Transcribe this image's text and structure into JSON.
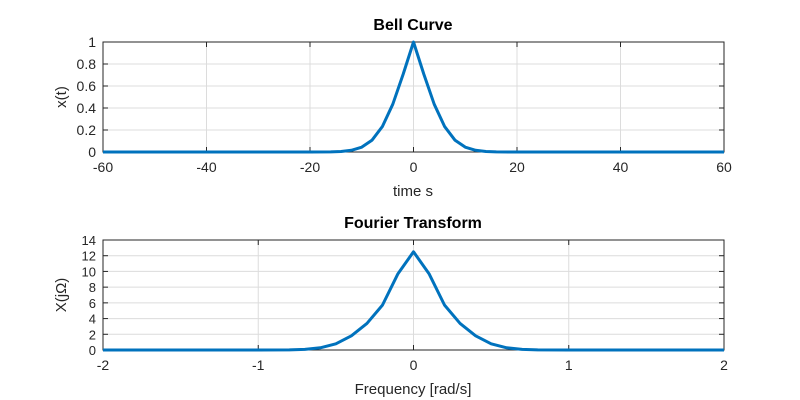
{
  "chart_data": [
    {
      "type": "line",
      "title": "Bell Curve",
      "xlabel": "time s",
      "ylabel": "x(t)",
      "xlim": [
        -60,
        60
      ],
      "ylim": [
        0,
        1
      ],
      "xticks": [
        -60,
        -40,
        -20,
        0,
        20,
        40,
        60
      ],
      "xtick_labels": [
        "-60",
        "-40",
        "-20",
        "0",
        "20",
        "40",
        "60"
      ],
      "yticks": [
        0,
        0.2,
        0.4,
        0.6,
        0.8,
        1
      ],
      "ytick_labels": [
        "0",
        "0.2",
        "0.4",
        "0.6",
        "0.8",
        "1"
      ],
      "grid": true,
      "color": "#0072BD",
      "x": [
        -60,
        -50,
        -40,
        -30,
        -20,
        -16,
        -14,
        -12,
        -10,
        -8,
        -6,
        -4,
        -2,
        0,
        2,
        4,
        6,
        8,
        10,
        12,
        14,
        16,
        20,
        30,
        40,
        50,
        60
      ],
      "y": [
        0,
        0,
        0,
        0,
        0,
        0.0013,
        0.0048,
        0.0155,
        0.0439,
        0.1084,
        0.2326,
        0.4346,
        0.7066,
        1,
        0.7066,
        0.4346,
        0.2326,
        0.1084,
        0.0439,
        0.0155,
        0.0048,
        0.0013,
        0,
        0,
        0,
        0,
        0
      ]
    },
    {
      "type": "line",
      "title": "Fourier Transform",
      "xlabel": "Frequency [rad/s]",
      "ylabel": "X(jΩ)",
      "xlim": [
        -2,
        2
      ],
      "ylim": [
        0,
        14
      ],
      "xticks": [
        -2,
        -1,
        0,
        1,
        2
      ],
      "xtick_labels": [
        "-2",
        "-1",
        "0",
        "1",
        "2"
      ],
      "yticks": [
        0,
        2,
        4,
        6,
        8,
        10,
        12,
        14
      ],
      "ytick_labels": [
        "0",
        "2",
        "4",
        "6",
        "8",
        "10",
        "12",
        "14"
      ],
      "grid": true,
      "color": "#0072BD",
      "x": [
        -2,
        -1.5,
        -1,
        -0.8,
        -0.7,
        -0.6,
        -0.5,
        -0.4,
        -0.3,
        -0.2,
        -0.1,
        0,
        0.1,
        0.2,
        0.3,
        0.4,
        0.5,
        0.6,
        0.7,
        0.8,
        1,
        1.5,
        2
      ],
      "y": [
        0,
        0,
        0.0005,
        0.02,
        0.082,
        0.28,
        0.79,
        1.81,
        3.38,
        5.71,
        9.71,
        12.5,
        9.71,
        5.71,
        3.38,
        1.81,
        0.79,
        0.28,
        0.082,
        0.02,
        0.0005,
        0,
        0
      ]
    }
  ]
}
